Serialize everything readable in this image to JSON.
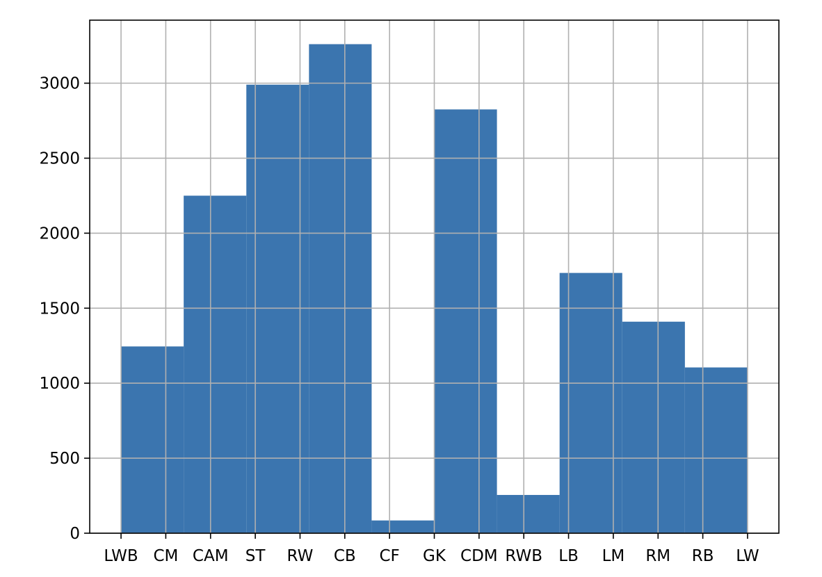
{
  "chart_data": {
    "type": "bar",
    "style": "histogram",
    "title": "",
    "xlabel": "",
    "ylabel": "",
    "grid": true,
    "color": "#3b75af",
    "x_ticks": [
      "LWB",
      "CM",
      "CAM",
      "ST",
      "RW",
      "CB",
      "CF",
      "GK",
      "CDM",
      "RWB",
      "LB",
      "LM",
      "RM",
      "RB",
      "LW"
    ],
    "y_ticks": [
      0,
      500,
      1000,
      1500,
      2000,
      2500,
      3000
    ],
    "xlim": [
      -0.7,
      14.7
    ],
    "ylim": [
      0,
      3420
    ],
    "bins": [
      {
        "start": 0.0,
        "end": 1.4,
        "value": 1245
      },
      {
        "start": 1.4,
        "end": 2.8,
        "value": 2250
      },
      {
        "start": 2.8,
        "end": 4.2,
        "value": 2990
      },
      {
        "start": 4.2,
        "end": 5.6,
        "value": 3260
      },
      {
        "start": 5.6,
        "end": 7.0,
        "value": 85
      },
      {
        "start": 7.0,
        "end": 8.4,
        "value": 2825
      },
      {
        "start": 8.4,
        "end": 9.8,
        "value": 255
      },
      {
        "start": 9.8,
        "end": 11.2,
        "value": 1735
      },
      {
        "start": 11.2,
        "end": 12.6,
        "value": 1410
      },
      {
        "start": 12.6,
        "end": 14.0,
        "value": 1105
      }
    ]
  }
}
